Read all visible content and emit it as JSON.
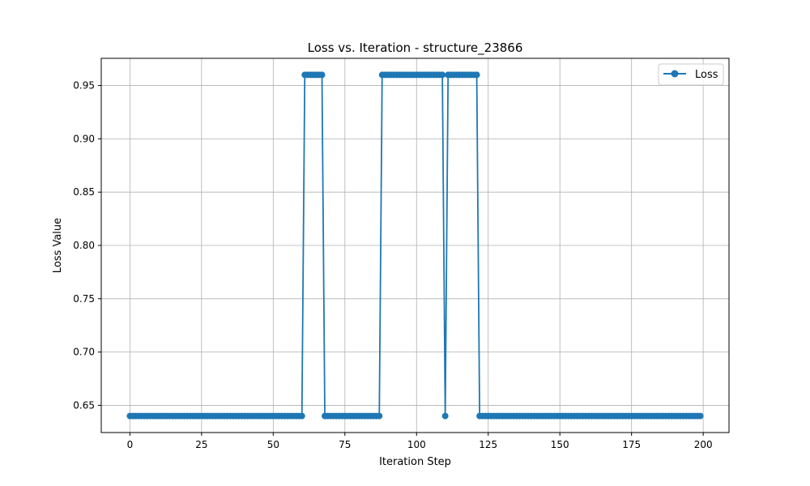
{
  "chart_data": {
    "type": "line",
    "title": "Loss vs. Iteration - structure_23866",
    "xlabel": "Iteration Step",
    "ylabel": "Loss Value",
    "xlim": [
      -10,
      209
    ],
    "ylim": [
      0.6245,
      0.9755
    ],
    "x_ticks": [
      0,
      25,
      50,
      75,
      100,
      125,
      150,
      175,
      200
    ],
    "y_ticks": [
      0.65,
      0.7,
      0.75,
      0.8,
      0.85,
      0.9,
      0.95
    ],
    "y_tick_labels": [
      "0.65",
      "0.70",
      "0.75",
      "0.80",
      "0.85",
      "0.90",
      "0.95"
    ],
    "grid": true,
    "legend_position": "top-right",
    "series": [
      {
        "name": "Loss",
        "color": "#1f77b4",
        "marker": "circle",
        "segments": [
          {
            "from": 0,
            "to": 60,
            "value": 0.64
          },
          {
            "from": 61,
            "to": 67,
            "value": 0.96
          },
          {
            "from": 68,
            "to": 87,
            "value": 0.64
          },
          {
            "from": 88,
            "to": 109,
            "value": 0.96
          },
          {
            "from": 110,
            "to": 110,
            "value": 0.64
          },
          {
            "from": 111,
            "to": 121,
            "value": 0.96
          },
          {
            "from": 122,
            "to": 199,
            "value": 0.64
          }
        ]
      }
    ]
  }
}
